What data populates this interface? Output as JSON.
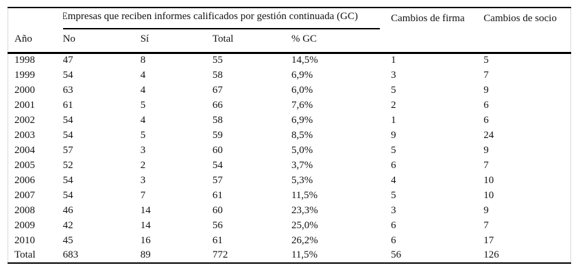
{
  "table": {
    "group_header": "Empresas que reciben informes calificados por gestión continuada (GC)",
    "columns": {
      "year": "Año",
      "no": "No",
      "si": "Sí",
      "total": "Total",
      "pct_gc": "% GC",
      "firm_changes": "Cambios de firma",
      "partner_changes": "Cambios de socio"
    },
    "rows": [
      [
        "1998",
        "47",
        "8",
        "55",
        "14,5%",
        "1",
        "5"
      ],
      [
        "1999",
        "54",
        "4",
        "58",
        "6,9%",
        "3",
        "7"
      ],
      [
        "2000",
        "63",
        "4",
        "67",
        "6,0%",
        "5",
        "9"
      ],
      [
        "2001",
        "61",
        "5",
        "66",
        "7,6%",
        "2",
        "6"
      ],
      [
        "2002",
        "54",
        "4",
        "58",
        "6,9%",
        "1",
        "6"
      ],
      [
        "2003",
        "54",
        "5",
        "59",
        "8,5%",
        "9",
        "24"
      ],
      [
        "2004",
        "57",
        "3",
        "60",
        "5,0%",
        "5",
        "9"
      ],
      [
        "2005",
        "52",
        "2",
        "54",
        "3,7%",
        "6",
        "7"
      ],
      [
        "2006",
        "54",
        "3",
        "57",
        "5,3%",
        "4",
        "10"
      ],
      [
        "2007",
        "54",
        "7",
        "61",
        "11,5%",
        "5",
        "10"
      ],
      [
        "2008",
        "46",
        "14",
        "60",
        "23,3%",
        "3",
        "9"
      ],
      [
        "2009",
        "42",
        "14",
        "56",
        "25,0%",
        "6",
        "7"
      ],
      [
        "2010",
        "45",
        "16",
        "61",
        "26,2%",
        "6",
        "17"
      ],
      [
        "Total",
        "683",
        "89",
        "772",
        "11,5%",
        "56",
        "126"
      ]
    ],
    "colors": {
      "rule": "#000000",
      "frame_edge": "#d8d8d8",
      "text": "#111111",
      "background": "#ffffff"
    }
  }
}
